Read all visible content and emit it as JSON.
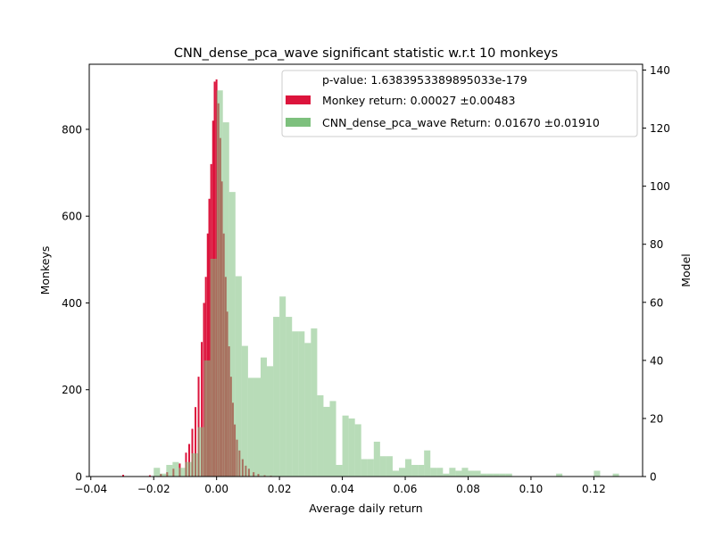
{
  "chart_data": {
    "type": "bar",
    "title": "CNN_dense_pca_wave significant statistic w.r.t 10 monkeys",
    "xlabel": "Average daily return",
    "ylabel_left": "Monkeys",
    "ylabel_right": "Model",
    "xlim": [
      -0.0405,
      0.1355
    ],
    "ylim_left": [
      0,
      950
    ],
    "ylim_right": [
      0,
      142
    ],
    "x_ticks": [
      -0.04,
      -0.02,
      0.0,
      0.02,
      0.04,
      0.06,
      0.08,
      0.1,
      0.12
    ],
    "x_tick_labels": [
      "−0.04",
      "−0.02",
      "0.00",
      "0.02",
      "0.04",
      "0.06",
      "0.08",
      "0.10",
      "0.12"
    ],
    "y_left_ticks": [
      0,
      200,
      400,
      600,
      800
    ],
    "y_left_tick_labels": [
      "0",
      "200",
      "400",
      "600",
      "800"
    ],
    "y_right_ticks": [
      0,
      20,
      40,
      60,
      80,
      100,
      120,
      140
    ],
    "y_right_tick_labels": [
      "0",
      "20",
      "40",
      "60",
      "80",
      "100",
      "120",
      "140"
    ],
    "grid": false,
    "legend": {
      "placement": "top-right",
      "entries": [
        "p-value: 1.6383953389895033e-179",
        "Monkey return: 0.00027 ±0.00483",
        "CNN_dense_pca_wave Return: 0.01670 ±0.01910"
      ]
    },
    "series": [
      {
        "name": "Monkey return: 0.00027 ±0.00483",
        "color": "#DC143C",
        "axis": "left",
        "bin_width": 0.000571,
        "bin_starts": [
          -0.03,
          -0.0215,
          -0.018,
          -0.016,
          -0.014,
          -0.012,
          -0.01,
          -0.009,
          -0.008,
          -0.007,
          -0.006,
          -0.005,
          -0.0043,
          -0.0037,
          -0.0031,
          -0.0026,
          -0.002,
          -0.0014,
          -0.0009,
          -0.0003,
          0.0003,
          0.0009,
          0.0014,
          0.002,
          0.0026,
          0.0031,
          0.0037,
          0.0043,
          0.0049,
          0.0055,
          0.0062,
          0.007,
          0.008,
          0.009,
          0.01,
          0.0115,
          0.013,
          0.015,
          0.017
        ],
        "counts": [
          4,
          3,
          6,
          10,
          18,
          30,
          55,
          75,
          110,
          160,
          230,
          310,
          400,
          460,
          560,
          640,
          720,
          820,
          910,
          915,
          860,
          780,
          680,
          560,
          460,
          380,
          300,
          230,
          170,
          120,
          85,
          60,
          40,
          25,
          18,
          10,
          6,
          3,
          2
        ]
      },
      {
        "name": "CNN_dense_pca_wave Return: 0.01670 ±0.01910",
        "color": "#7DC07D",
        "axis": "right",
        "bin_width": 0.002,
        "bin_starts": [
          -0.02,
          -0.018,
          -0.016,
          -0.014,
          -0.012,
          -0.01,
          -0.008,
          -0.006,
          -0.004,
          -0.002,
          0.0,
          0.002,
          0.004,
          0.006,
          0.008,
          0.01,
          0.012,
          0.014,
          0.016,
          0.018,
          0.02,
          0.022,
          0.024,
          0.026,
          0.028,
          0.03,
          0.032,
          0.034,
          0.036,
          0.038,
          0.04,
          0.042,
          0.044,
          0.046,
          0.048,
          0.05,
          0.052,
          0.054,
          0.056,
          0.058,
          0.06,
          0.062,
          0.064,
          0.066,
          0.068,
          0.07,
          0.072,
          0.074,
          0.076,
          0.078,
          0.08,
          0.082,
          0.084,
          0.086,
          0.088,
          0.09,
          0.092,
          0.094,
          0.096,
          0.098,
          0.1,
          0.102,
          0.104,
          0.106,
          0.108,
          0.11,
          0.112,
          0.114,
          0.116,
          0.118,
          0.12,
          0.122,
          0.124,
          0.126
        ],
        "counts": [
          3,
          1,
          4,
          5,
          3,
          5,
          8,
          17,
          40,
          75,
          133,
          122,
          98,
          69,
          45,
          34,
          34,
          41,
          38,
          55,
          62,
          55,
          50,
          50,
          46,
          51,
          28,
          24,
          26,
          4,
          21,
          20,
          18,
          6,
          6,
          12,
          7,
          7,
          2,
          3,
          6,
          4,
          4,
          9,
          3,
          3,
          1,
          3,
          2,
          3,
          2,
          2,
          1,
          1,
          1,
          1,
          1,
          0,
          0,
          0,
          0,
          0,
          0,
          0,
          1,
          0,
          0,
          0,
          0,
          0,
          2,
          0,
          0,
          1
        ]
      }
    ]
  }
}
